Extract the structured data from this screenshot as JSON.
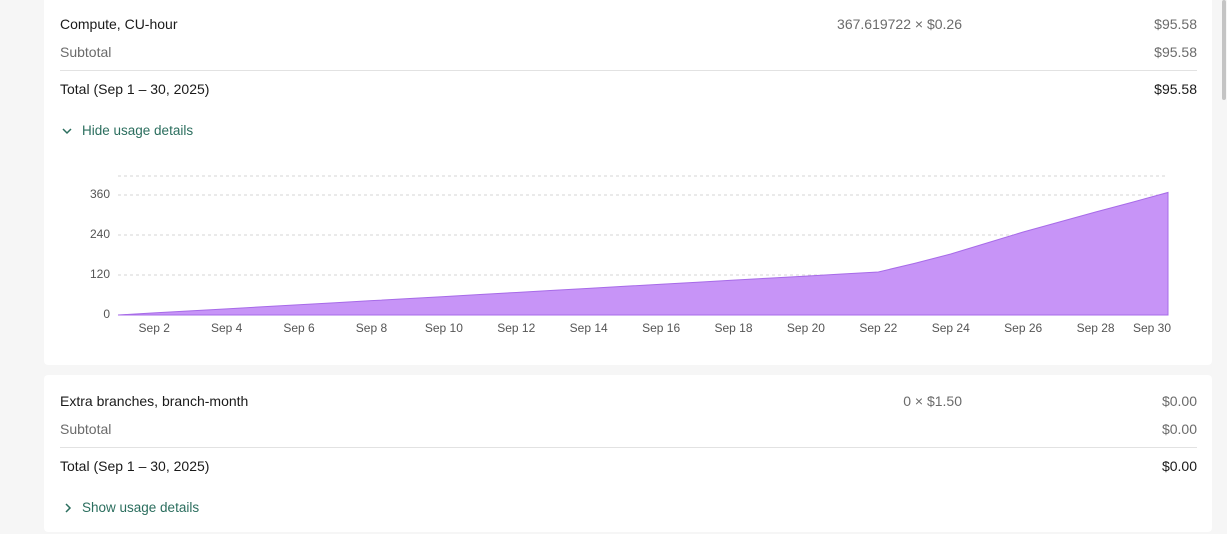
{
  "cards": [
    {
      "item": "Compute, CU-hour",
      "quantity": "367.619722 × $0.26",
      "amount": "$95.58",
      "subtotal_label": "Subtotal",
      "subtotal": "$95.58",
      "total_label": "Total (Sep 1 – 30, 2025)",
      "total": "$95.58",
      "toggle": "Hide usage details"
    },
    {
      "item": "Extra branches, branch-month",
      "quantity": "0 × $1.50",
      "amount": "$0.00",
      "subtotal_label": "Subtotal",
      "subtotal": "$0.00",
      "total_label": "Total (Sep 1 – 30, 2025)",
      "total": "$0.00",
      "toggle": "Show usage details"
    }
  ],
  "chart_data": {
    "type": "area",
    "categories": [
      null,
      "Sep 2",
      null,
      "Sep 4",
      null,
      "Sep 6",
      null,
      "Sep 8",
      null,
      "Sep 10",
      null,
      "Sep 12",
      null,
      "Sep 14",
      null,
      "Sep 16",
      null,
      "Sep 18",
      null,
      "Sep 20",
      null,
      "Sep 22",
      null,
      "Sep 24",
      null,
      "Sep 26",
      null,
      "Sep 28",
      null,
      "Sep 30"
    ],
    "values": [
      0,
      6.2,
      12.3,
      18.5,
      24.6,
      30.8,
      36.9,
      43,
      49.2,
      55.3,
      61.5,
      67.6,
      73.8,
      79.9,
      86.1,
      92.2,
      98.4,
      104.5,
      110.7,
      116.8,
      123,
      129,
      155,
      183,
      216,
      249,
      279,
      309,
      338,
      367.6
    ],
    "color": "#c794f7",
    "ylim": [
      0,
      417
    ],
    "yticks": [
      0,
      120,
      240,
      360
    ],
    "grid": true
  }
}
